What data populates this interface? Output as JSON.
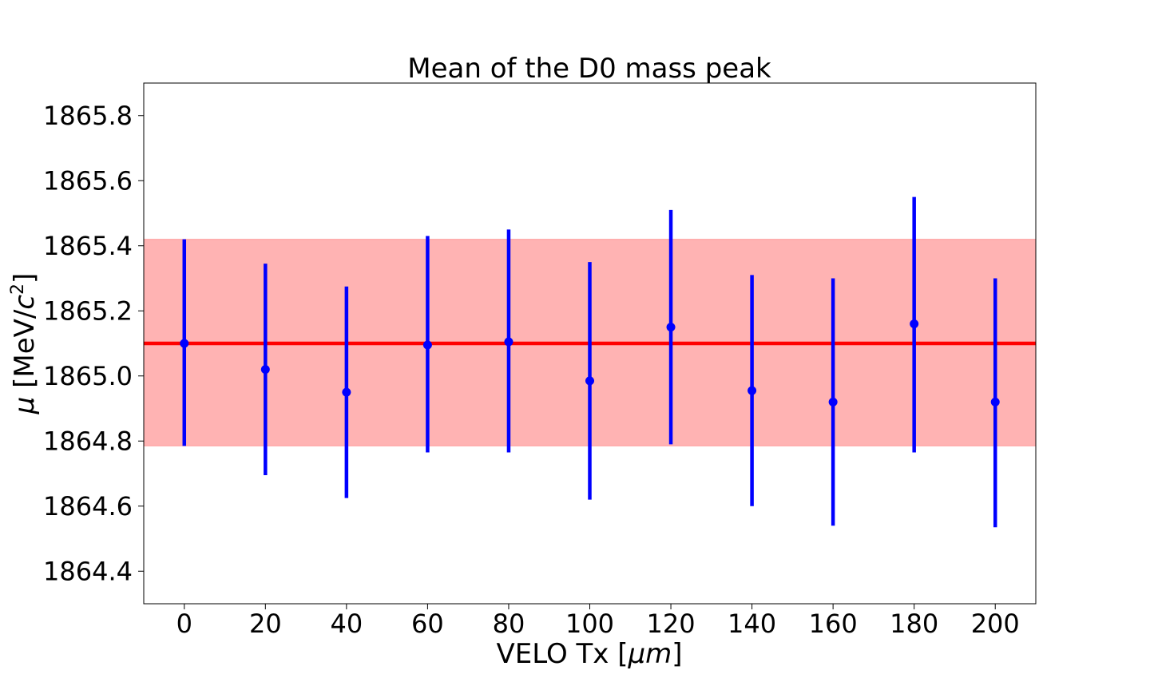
{
  "chart_data": {
    "type": "scatter",
    "title": "Mean of the D0 mass peak",
    "xlabel_text": "VELO Tx [",
    "xlabel_math": "μm",
    "xlabel_close": "]",
    "ylabel_math": "μ",
    "ylabel_text": " [MeV/",
    "ylabel_c": "c",
    "ylabel_exp": "2",
    "ylabel_close": "]",
    "xlim": [
      -10,
      210
    ],
    "ylim": [
      1864.3,
      1865.9
    ],
    "xticks": [
      0,
      20,
      40,
      60,
      80,
      100,
      120,
      140,
      160,
      180,
      200
    ],
    "xtick_labels": [
      "0",
      "20",
      "40",
      "60",
      "80",
      "100",
      "120",
      "140",
      "160",
      "180",
      "200"
    ],
    "yticks": [
      1864.4,
      1864.6,
      1864.8,
      1865.0,
      1865.2,
      1865.4,
      1865.6,
      1865.8
    ],
    "ytick_labels": [
      "1864.4",
      "1864.6",
      "1864.8",
      "1865.0",
      "1865.2",
      "1865.4",
      "1865.6",
      "1865.8"
    ],
    "grid": false,
    "series": [
      {
        "x": [
          0,
          20,
          40,
          60,
          80,
          100,
          120,
          140,
          160,
          180,
          200
        ],
        "y": [
          1865.1,
          1865.02,
          1864.95,
          1865.095,
          1865.105,
          1864.985,
          1865.15,
          1864.955,
          1864.92,
          1865.16,
          1864.92
        ],
        "yerr_low": [
          1864.785,
          1864.695,
          1864.625,
          1864.765,
          1864.765,
          1864.62,
          1864.79,
          1864.6,
          1864.54,
          1864.765,
          1864.535
        ],
        "yerr_high": [
          1865.42,
          1865.345,
          1865.275,
          1865.43,
          1865.45,
          1865.35,
          1865.51,
          1865.31,
          1865.3,
          1865.55,
          1865.3
        ],
        "color": "#0000ff"
      }
    ],
    "reference": {
      "y": 1865.1,
      "band_low": 1864.785,
      "band_high": 1865.42,
      "line_color": "#ff0000",
      "band_color": "#ffb3b3"
    }
  }
}
